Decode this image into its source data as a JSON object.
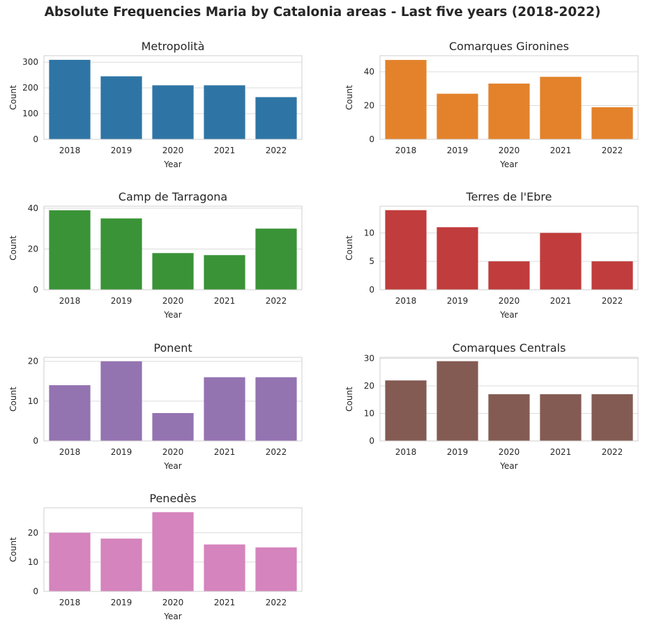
{
  "title": "Absolute Frequencies Maria by Catalonia areas - Last five years (2018-2022)",
  "chart_data": [
    {
      "type": "bar",
      "title": "Metropolità",
      "xlabel": "Year",
      "ylabel": "Count",
      "categories": [
        "2018",
        "2019",
        "2020",
        "2021",
        "2022"
      ],
      "values": [
        309,
        245,
        210,
        210,
        164
      ],
      "ylim": [
        0,
        325
      ],
      "yticks": [
        0,
        100,
        200,
        300
      ],
      "color": "#2e75a5",
      "grid": true
    },
    {
      "type": "bar",
      "title": "Comarques Gironines",
      "xlabel": "Year",
      "ylabel": "Count",
      "categories": [
        "2018",
        "2019",
        "2020",
        "2021",
        "2022"
      ],
      "values": [
        47,
        27,
        33,
        37,
        19
      ],
      "ylim": [
        0,
        49.5
      ],
      "yticks": [
        0,
        20,
        40
      ],
      "color": "#e3822b",
      "grid": true
    },
    {
      "type": "bar",
      "title": "Camp de Tarragona",
      "xlabel": "Year",
      "ylabel": "Count",
      "categories": [
        "2018",
        "2019",
        "2020",
        "2021",
        "2022"
      ],
      "values": [
        39,
        35,
        18,
        17,
        30
      ],
      "ylim": [
        0,
        41
      ],
      "yticks": [
        0,
        20,
        40
      ],
      "color": "#3a9337",
      "grid": true
    },
    {
      "type": "bar",
      "title": "Terres de l'Ebre",
      "xlabel": "Year",
      "ylabel": "Count",
      "categories": [
        "2018",
        "2019",
        "2020",
        "2021",
        "2022"
      ],
      "values": [
        14,
        11,
        5,
        10,
        5
      ],
      "ylim": [
        0,
        14.7
      ],
      "yticks": [
        0,
        5,
        10
      ],
      "color": "#c13c3c",
      "grid": true
    },
    {
      "type": "bar",
      "title": "Ponent",
      "xlabel": "Year",
      "ylabel": "Count",
      "categories": [
        "2018",
        "2019",
        "2020",
        "2021",
        "2022"
      ],
      "values": [
        14,
        20,
        7,
        16,
        16
      ],
      "ylim": [
        0,
        21
      ],
      "yticks": [
        0,
        10,
        20
      ],
      "color": "#9473b1",
      "grid": true
    },
    {
      "type": "bar",
      "title": "Comarques Centrals",
      "xlabel": "Year",
      "ylabel": "Count",
      "categories": [
        "2018",
        "2019",
        "2020",
        "2021",
        "2022"
      ],
      "values": [
        22,
        29,
        17,
        17,
        17
      ],
      "ylim": [
        0,
        30.4
      ],
      "yticks": [
        0,
        10,
        20,
        30
      ],
      "color": "#845b53",
      "grid": true
    },
    {
      "type": "bar",
      "title": "Penedès",
      "xlabel": "Year",
      "ylabel": "Count",
      "categories": [
        "2018",
        "2019",
        "2020",
        "2021",
        "2022"
      ],
      "values": [
        20,
        18,
        27,
        16,
        15
      ],
      "ylim": [
        0,
        28.5
      ],
      "yticks": [
        0,
        10,
        20
      ],
      "color": "#d584bd",
      "grid": true
    }
  ]
}
